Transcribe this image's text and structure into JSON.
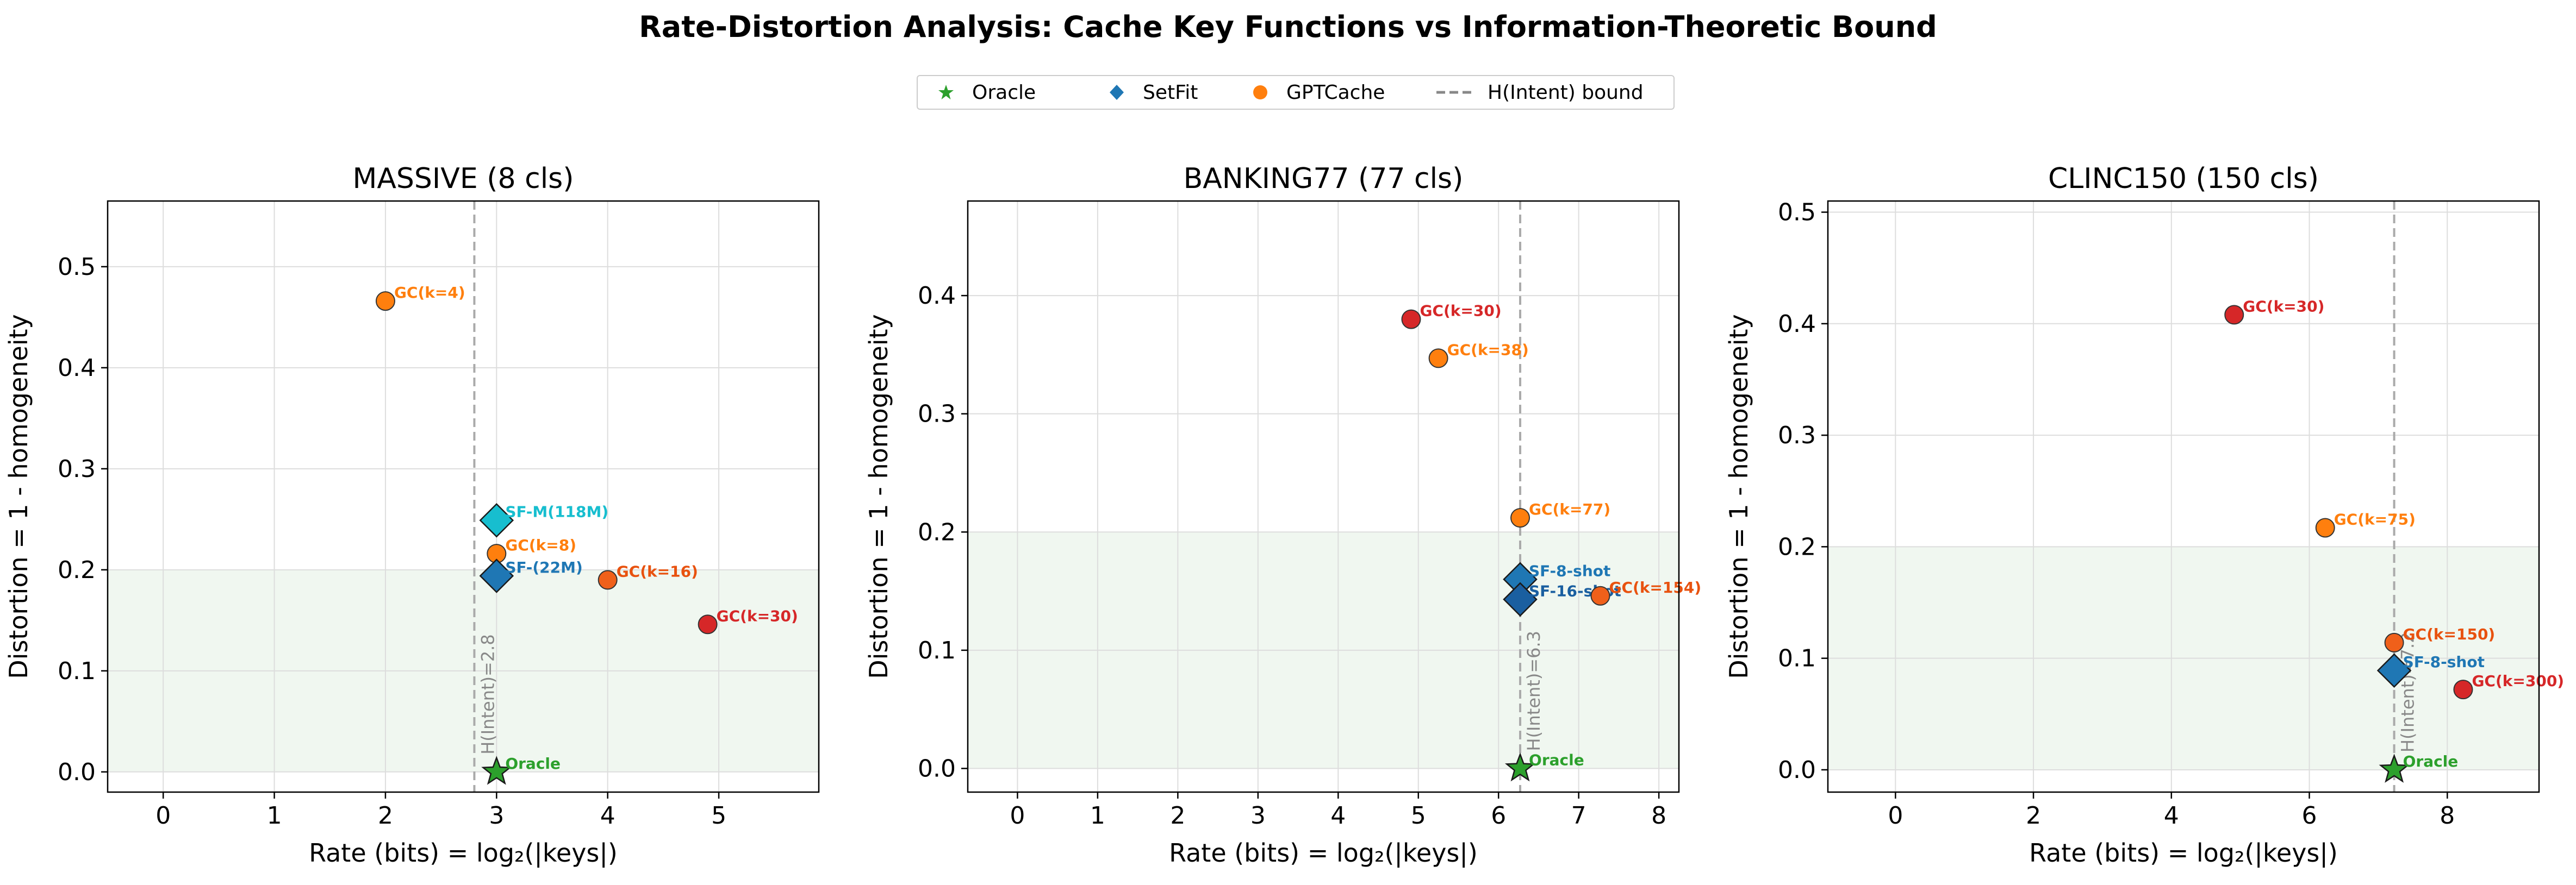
{
  "figure": {
    "title": "Rate-Distortion Analysis: Cache Key Functions vs Information-Theoretic Bound",
    "legend": [
      {
        "label": "Oracle",
        "marker": "star",
        "color": "#2ca02c"
      },
      {
        "label": "SetFit",
        "marker": "diamond",
        "color": "#1f77b4"
      },
      {
        "label": "GPTCache",
        "marker": "circle",
        "color": "#ff7f0e"
      },
      {
        "label": "H(Intent) bound",
        "marker": "dashed-line",
        "color": "#888888"
      }
    ]
  },
  "chart_data": [
    {
      "type": "scatter",
      "title": "MASSIVE (8 cls)",
      "xlabel": "Rate (bits) = log₂(|keys|)",
      "ylabel": "Distortion = 1 - homogeneity",
      "xlim": [
        -0.5,
        5.9
      ],
      "ylim": [
        -0.02,
        0.565
      ],
      "xticks": [
        "0",
        "1",
        "2",
        "3",
        "4",
        "5"
      ],
      "yticks": [
        "0.0",
        "0.1",
        "0.2",
        "0.3",
        "0.4",
        "0.5"
      ],
      "grid": true,
      "shaded_region": {
        "y_from": 0.0,
        "y_to": 0.2,
        "color": "#e6f2e6"
      },
      "bound": {
        "x": 2.8,
        "label": "H(Intent)=2.8"
      },
      "points": [
        {
          "series": "GPTCache",
          "label": "GC(k=4)",
          "x": 2.0,
          "y": 0.466,
          "marker": "circle",
          "color": "#ff7f0e",
          "label_color": "#ff7f0e"
        },
        {
          "series": "SetFit",
          "label": "SF-M(118M)",
          "x": 3.0,
          "y": 0.249,
          "marker": "diamond",
          "color": "#17becf",
          "label_color": "#17becf"
        },
        {
          "series": "GPTCache",
          "label": "GC(k=8)",
          "x": 3.0,
          "y": 0.216,
          "marker": "circle",
          "color": "#ff7f0e",
          "label_color": "#ff7f0e"
        },
        {
          "series": "SetFit",
          "label": "SF-(22M)",
          "x": 3.0,
          "y": 0.194,
          "marker": "diamond",
          "color": "#1f77b4",
          "label_color": "#1f77b4"
        },
        {
          "series": "GPTCache",
          "label": "GC(k=16)",
          "x": 4.0,
          "y": 0.19,
          "marker": "circle",
          "color": "#f0601a",
          "label_color": "#e8520f"
        },
        {
          "series": "GPTCache",
          "label": "GC(k=30)",
          "x": 4.9,
          "y": 0.146,
          "marker": "circle",
          "color": "#d62728",
          "label_color": "#d62728"
        },
        {
          "series": "Oracle",
          "label": "Oracle",
          "x": 3.0,
          "y": 0.0,
          "marker": "star",
          "color": "#2ca02c",
          "label_color": "#2ca02c"
        }
      ]
    },
    {
      "type": "scatter",
      "title": "BANKING77 (77 cls)",
      "xlabel": "Rate (bits) = log₂(|keys|)",
      "ylabel": "Distortion = 1 - homogeneity",
      "xlim": [
        -0.62,
        8.25
      ],
      "ylim": [
        -0.02,
        0.48
      ],
      "xticks": [
        "0",
        "1",
        "2",
        "3",
        "4",
        "5",
        "6",
        "7",
        "8"
      ],
      "yticks": [
        "0.0",
        "0.1",
        "0.2",
        "0.3",
        "0.4"
      ],
      "grid": true,
      "shaded_region": {
        "y_from": 0.0,
        "y_to": 0.2,
        "color": "#e6f2e6"
      },
      "bound": {
        "x": 6.27,
        "label": "H(Intent)=6.3"
      },
      "points": [
        {
          "series": "GPTCache",
          "label": "GC(k=30)",
          "x": 4.91,
          "y": 0.38,
          "marker": "circle",
          "color": "#d62728",
          "label_color": "#d62728"
        },
        {
          "series": "GPTCache",
          "label": "GC(k=38)",
          "x": 5.25,
          "y": 0.347,
          "marker": "circle",
          "color": "#ff7f0e",
          "label_color": "#ff7f0e"
        },
        {
          "series": "GPTCache",
          "label": "GC(k=77)",
          "x": 6.27,
          "y": 0.212,
          "marker": "circle",
          "color": "#ff7f0e",
          "label_color": "#ff7f0e"
        },
        {
          "series": "SetFit",
          "label": "SF-8-shot",
          "x": 6.27,
          "y": 0.16,
          "marker": "diamond",
          "color": "#1f77b4",
          "label_color": "#1f77b4"
        },
        {
          "series": "SetFit",
          "label": "SF-16-shot",
          "x": 6.27,
          "y": 0.143,
          "marker": "diamond",
          "color": "#1a5fa0",
          "label_color": "#1a5fa0"
        },
        {
          "series": "GPTCache",
          "label": "GC(k=154)",
          "x": 7.27,
          "y": 0.146,
          "marker": "circle",
          "color": "#f0601a",
          "label_color": "#e8520f"
        },
        {
          "series": "Oracle",
          "label": "Oracle",
          "x": 6.27,
          "y": 0.0,
          "marker": "star",
          "color": "#2ca02c",
          "label_color": "#2ca02c"
        }
      ]
    },
    {
      "type": "scatter",
      "title": "CLINC150 (150 cls)",
      "xlabel": "Rate (bits) = log₂(|keys|)",
      "ylabel": "Distortion = 1 - homogeneity",
      "xlim": [
        -0.98,
        9.33
      ],
      "ylim": [
        -0.02,
        0.51
      ],
      "xticks": [
        "0",
        "2",
        "4",
        "6",
        "8"
      ],
      "yticks": [
        "0.0",
        "0.1",
        "0.2",
        "0.3",
        "0.4",
        "0.5"
      ],
      "grid": true,
      "shaded_region": {
        "y_from": 0.0,
        "y_to": 0.2,
        "color": "#e6f2e6"
      },
      "bound": {
        "x": 7.23,
        "label": "H(Intent)=7.2"
      },
      "points": [
        {
          "series": "GPTCache",
          "label": "GC(k=30)",
          "x": 4.91,
          "y": 0.408,
          "marker": "circle",
          "color": "#d62728",
          "label_color": "#d62728"
        },
        {
          "series": "GPTCache",
          "label": "GC(k=75)",
          "x": 6.23,
          "y": 0.217,
          "marker": "circle",
          "color": "#ff7f0e",
          "label_color": "#ff7f0e"
        },
        {
          "series": "GPTCache",
          "label": "GC(k=150)",
          "x": 7.23,
          "y": 0.114,
          "marker": "circle",
          "color": "#f0601a",
          "label_color": "#e8520f"
        },
        {
          "series": "SetFit",
          "label": "SF-8-shot",
          "x": 7.23,
          "y": 0.089,
          "marker": "diamond",
          "color": "#1f77b4",
          "label_color": "#1f77b4"
        },
        {
          "series": "GPTCache",
          "label": "GC(k=300)",
          "x": 8.23,
          "y": 0.072,
          "marker": "circle",
          "color": "#d62728",
          "label_color": "#d62728"
        },
        {
          "series": "Oracle",
          "label": "Oracle",
          "x": 7.23,
          "y": 0.0,
          "marker": "star",
          "color": "#2ca02c",
          "label_color": "#2ca02c"
        }
      ]
    }
  ]
}
